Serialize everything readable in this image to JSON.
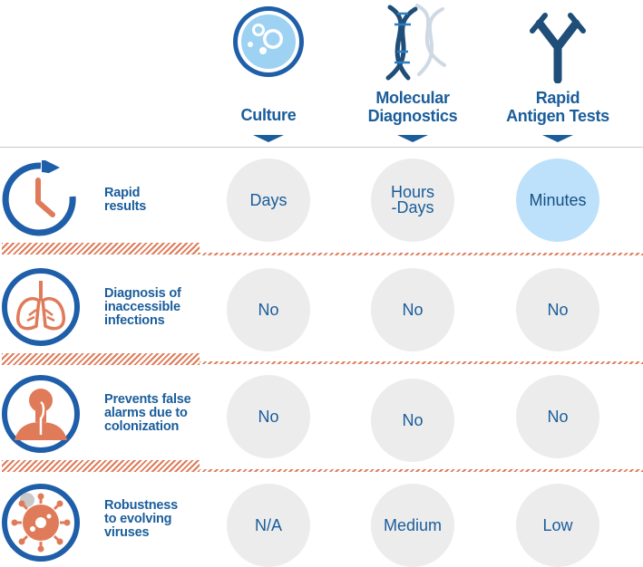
{
  "columns": [
    {
      "label": "Culture",
      "icon": "petri-dish-icon"
    },
    {
      "label": "Molecular\nDiagnostics",
      "icon": "dna-icon"
    },
    {
      "label": "Rapid\nAntigen Tests",
      "icon": "antibody-icon"
    }
  ],
  "rows": [
    {
      "label": "Rapid\nresults",
      "icon": "clock-icon",
      "values": [
        "Days",
        "Hours\n-Days",
        "Minutes"
      ],
      "highlight": 2
    },
    {
      "label": "Diagnosis of\ninaccessible\ninfections",
      "icon": "lungs-icon",
      "values": [
        "No",
        "No",
        "No"
      ]
    },
    {
      "label": "Prevents false\nalarms due to\ncolonization",
      "icon": "respiratory-tract-icon",
      "values": [
        "No",
        "No",
        "No"
      ]
    },
    {
      "label": "Robustness\nto evolving\nviruses",
      "icon": "virus-icon",
      "values": [
        "N/A",
        "Medium",
        "Low"
      ]
    }
  ],
  "colors": {
    "text_blue": "#1a5d9b",
    "icon_dark_blue": "#1f4e79",
    "icon_mid_blue": "#2a6db3",
    "accent_orange": "#e07b59",
    "cell_gray": "#ececec",
    "cell_highlight": "#bde1fb"
  }
}
